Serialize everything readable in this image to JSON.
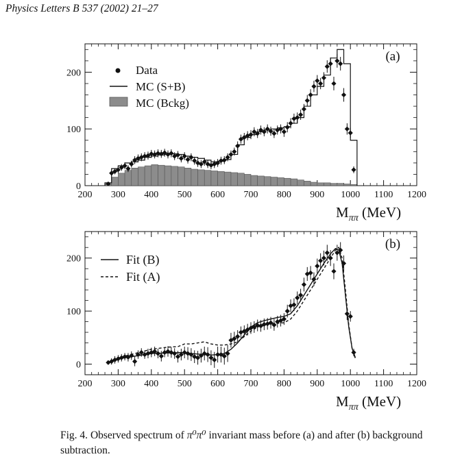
{
  "header": {
    "journal": "Physics Letters B 537 (2002) 21–27"
  },
  "caption": {
    "label": "Fig. 4.",
    "text_before": "Observed spectrum of",
    "math": "π⁰π⁰",
    "text_after": "invariant mass before (a) and after (b) background subtraction."
  },
  "chart_data": [
    {
      "type": "bar",
      "panel_label": "(a)",
      "xlabel": "Mπ π (MeV)",
      "ylabel": "",
      "xlim": [
        200,
        1200
      ],
      "ylim": [
        0,
        250
      ],
      "xticks": [
        200,
        300,
        400,
        500,
        600,
        700,
        800,
        900,
        1000,
        1100,
        1200
      ],
      "yticks": [
        0,
        100,
        200
      ],
      "legend": [
        {
          "marker": "dot",
          "label": "Data"
        },
        {
          "marker": "line",
          "label": "MC (S+B)"
        },
        {
          "marker": "gray-box",
          "label": "MC (Bckg)"
        }
      ],
      "bin_edges": [
        260,
        280,
        300,
        320,
        340,
        360,
        380,
        400,
        420,
        440,
        460,
        480,
        500,
        520,
        540,
        560,
        580,
        600,
        620,
        640,
        660,
        680,
        700,
        720,
        740,
        760,
        780,
        800,
        820,
        840,
        860,
        880,
        900,
        920,
        940,
        960,
        980,
        1000,
        1020
      ],
      "series": [
        {
          "name": "MC (S+B)",
          "style": "histogram-line",
          "values": [
            5,
            30,
            35,
            40,
            42,
            45,
            50,
            52,
            54,
            55,
            56,
            55,
            52,
            50,
            48,
            45,
            42,
            43,
            46,
            55,
            72,
            85,
            90,
            95,
            98,
            100,
            102,
            104,
            110,
            120,
            140,
            160,
            175,
            195,
            225,
            240,
            215,
            80
          ]
        },
        {
          "name": "MC (Bckg)",
          "style": "histogram-fill",
          "values": [
            3,
            15,
            22,
            27,
            31,
            33,
            35,
            37,
            36,
            35,
            34,
            33,
            31,
            29,
            28,
            27,
            26,
            25,
            24,
            23,
            22,
            20,
            18,
            17,
            16,
            15,
            14,
            13,
            12,
            10,
            8,
            6,
            5,
            5,
            4,
            4,
            3,
            2
          ]
        },
        {
          "name": "Data",
          "style": "points",
          "points": [
            [
              270,
              3,
              3
            ],
            [
              280,
              22,
              5
            ],
            [
              290,
              25,
              5
            ],
            [
              300,
              28,
              6
            ],
            [
              310,
              32,
              6
            ],
            [
              320,
              35,
              6
            ],
            [
              330,
              30,
              6
            ],
            [
              340,
              38,
              6
            ],
            [
              350,
              45,
              7
            ],
            [
              360,
              48,
              7
            ],
            [
              370,
              50,
              7
            ],
            [
              380,
              52,
              7
            ],
            [
              390,
              53,
              7
            ],
            [
              400,
              56,
              7
            ],
            [
              410,
              55,
              7
            ],
            [
              420,
              57,
              7
            ],
            [
              430,
              56,
              7
            ],
            [
              440,
              58,
              7
            ],
            [
              450,
              55,
              7
            ],
            [
              460,
              57,
              7
            ],
            [
              470,
              52,
              7
            ],
            [
              480,
              54,
              7
            ],
            [
              490,
              48,
              7
            ],
            [
              500,
              52,
              7
            ],
            [
              510,
              46,
              7
            ],
            [
              520,
              50,
              7
            ],
            [
              530,
              44,
              7
            ],
            [
              540,
              40,
              7
            ],
            [
              550,
              38,
              7
            ],
            [
              560,
              42,
              7
            ],
            [
              570,
              38,
              7
            ],
            [
              580,
              36,
              7
            ],
            [
              590,
              38,
              7
            ],
            [
              600,
              40,
              7
            ],
            [
              610,
              44,
              7
            ],
            [
              620,
              45,
              7
            ],
            [
              630,
              50,
              7
            ],
            [
              640,
              55,
              7
            ],
            [
              650,
              60,
              7
            ],
            [
              660,
              70,
              8
            ],
            [
              670,
              82,
              8
            ],
            [
              680,
              85,
              8
            ],
            [
              690,
              88,
              8
            ],
            [
              700,
              90,
              8
            ],
            [
              710,
              95,
              8
            ],
            [
              720,
              92,
              8
            ],
            [
              730,
              98,
              8
            ],
            [
              740,
              95,
              8
            ],
            [
              750,
              100,
              8
            ],
            [
              760,
              96,
              8
            ],
            [
              770,
              92,
              8
            ],
            [
              780,
              98,
              8
            ],
            [
              790,
              100,
              8
            ],
            [
              800,
              95,
              9
            ],
            [
              810,
              103,
              9
            ],
            [
              820,
              110,
              9
            ],
            [
              830,
              118,
              9
            ],
            [
              840,
              120,
              9
            ],
            [
              850,
              125,
              9
            ],
            [
              860,
              135,
              9
            ],
            [
              870,
              150,
              10
            ],
            [
              880,
              160,
              10
            ],
            [
              890,
              175,
              10
            ],
            [
              900,
              185,
              10
            ],
            [
              910,
              180,
              10
            ],
            [
              920,
              190,
              10
            ],
            [
              930,
              210,
              11
            ],
            [
              940,
              215,
              11
            ],
            [
              950,
              180,
              12
            ],
            [
              960,
              220,
              12
            ],
            [
              970,
              215,
              12
            ],
            [
              980,
              160,
              12
            ],
            [
              990,
              100,
              10
            ],
            [
              1000,
              93,
              9
            ],
            [
              1010,
              28,
              6
            ]
          ]
        }
      ]
    },
    {
      "type": "line",
      "panel_label": "(b)",
      "xlabel": "Mπ π (MeV)",
      "ylabel": "",
      "xlim": [
        200,
        1200
      ],
      "ylim": [
        -20,
        250
      ],
      "xticks": [
        200,
        300,
        400,
        500,
        600,
        700,
        800,
        900,
        1000,
        1100,
        1200
      ],
      "yticks": [
        0,
        100,
        200
      ],
      "legend": [
        {
          "marker": "solid",
          "label": "Fit (B)"
        },
        {
          "marker": "dashed",
          "label": "Fit (A)"
        }
      ],
      "series": [
        {
          "name": "Fit (B)",
          "style": "solid",
          "x": [
            270,
            300,
            350,
            400,
            450,
            500,
            520,
            540,
            560,
            580,
            600,
            620,
            640,
            660,
            680,
            700,
            720,
            740,
            760,
            780,
            800,
            820,
            840,
            860,
            880,
            900,
            920,
            940,
            955,
            965,
            975,
            985,
            995,
            1005,
            1015
          ],
          "y": [
            3,
            10,
            15,
            20,
            21,
            22,
            20,
            19,
            18,
            17,
            18,
            20,
            28,
            40,
            55,
            70,
            78,
            82,
            85,
            88,
            90,
            95,
            110,
            130,
            150,
            170,
            190,
            208,
            218,
            215,
            190,
            130,
            70,
            30,
            12
          ]
        },
        {
          "name": "Fit (A)",
          "style": "dashed",
          "x": [
            270,
            300,
            350,
            400,
            450,
            480,
            500,
            520,
            540,
            560,
            580,
            600,
            620,
            640,
            660,
            680,
            700,
            720,
            740,
            760,
            780,
            800,
            820,
            840,
            860,
            880,
            900,
            920,
            940,
            955,
            965,
            975,
            985,
            995,
            1005,
            1015
          ],
          "y": [
            3,
            12,
            20,
            28,
            32,
            33,
            38,
            38,
            40,
            42,
            38,
            36,
            36,
            38,
            42,
            52,
            62,
            70,
            74,
            76,
            77,
            78,
            85,
            100,
            120,
            140,
            160,
            180,
            200,
            215,
            220,
            200,
            140,
            75,
            30,
            10
          ]
        },
        {
          "name": "Data",
          "style": "points",
          "points": [
            [
              270,
              3,
              4
            ],
            [
              280,
              5,
              6
            ],
            [
              290,
              8,
              7
            ],
            [
              300,
              10,
              7
            ],
            [
              310,
              12,
              7
            ],
            [
              320,
              14,
              7
            ],
            [
              330,
              13,
              8
            ],
            [
              340,
              16,
              8
            ],
            [
              350,
              5,
              9
            ],
            [
              360,
              18,
              8
            ],
            [
              370,
              22,
              8
            ],
            [
              380,
              18,
              8
            ],
            [
              390,
              20,
              9
            ],
            [
              400,
              22,
              9
            ],
            [
              410,
              24,
              9
            ],
            [
              420,
              20,
              9
            ],
            [
              430,
              15,
              10
            ],
            [
              440,
              22,
              9
            ],
            [
              450,
              24,
              10
            ],
            [
              460,
              22,
              10
            ],
            [
              470,
              20,
              10
            ],
            [
              480,
              14,
              11
            ],
            [
              490,
              18,
              11
            ],
            [
              500,
              22,
              11
            ],
            [
              510,
              20,
              12
            ],
            [
              520,
              18,
              12
            ],
            [
              530,
              14,
              12
            ],
            [
              540,
              12,
              13
            ],
            [
              550,
              16,
              13
            ],
            [
              560,
              20,
              13
            ],
            [
              570,
              18,
              14
            ],
            [
              580,
              12,
              14
            ],
            [
              590,
              8,
              15
            ],
            [
              600,
              18,
              15
            ],
            [
              610,
              18,
              15
            ],
            [
              620,
              15,
              16
            ],
            [
              630,
              20,
              16
            ],
            [
              640,
              45,
              14
            ],
            [
              650,
              48,
              13
            ],
            [
              660,
              52,
              12
            ],
            [
              670,
              60,
              11
            ],
            [
              680,
              62,
              11
            ],
            [
              690,
              65,
              11
            ],
            [
              700,
              68,
              11
            ],
            [
              710,
              70,
              11
            ],
            [
              720,
              73,
              11
            ],
            [
              730,
              72,
              11
            ],
            [
              740,
              75,
              11
            ],
            [
              750,
              76,
              11
            ],
            [
              760,
              78,
              11
            ],
            [
              770,
              74,
              11
            ],
            [
              780,
              80,
              11
            ],
            [
              790,
              82,
              11
            ],
            [
              800,
              85,
              11
            ],
            [
              810,
              100,
              12
            ],
            [
              820,
              110,
              12
            ],
            [
              830,
              112,
              12
            ],
            [
              840,
              125,
              12
            ],
            [
              850,
              130,
              12
            ],
            [
              860,
              150,
              13
            ],
            [
              870,
              170,
              13
            ],
            [
              880,
              172,
              13
            ],
            [
              890,
              160,
              13
            ],
            [
              900,
              185,
              14
            ],
            [
              910,
              195,
              14
            ],
            [
              920,
              200,
              14
            ],
            [
              930,
              210,
              15
            ],
            [
              940,
              200,
              15
            ],
            [
              950,
              175,
              15
            ],
            [
              960,
              210,
              15
            ],
            [
              970,
              215,
              15
            ],
            [
              980,
              190,
              15
            ],
            [
              990,
              95,
              12
            ],
            [
              1000,
              90,
              10
            ],
            [
              1010,
              22,
              7
            ]
          ]
        }
      ]
    }
  ]
}
